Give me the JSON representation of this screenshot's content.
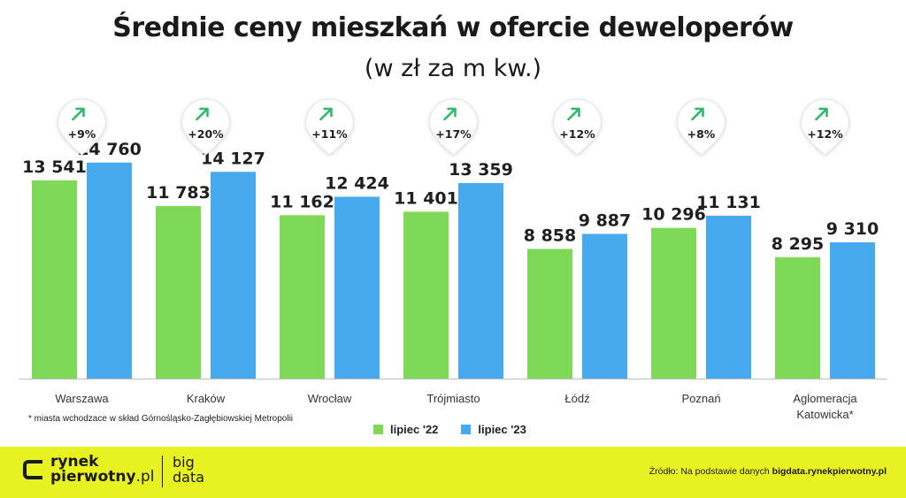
{
  "title": "Średnie ceny mieszkań w ofercie deweloperów",
  "subtitle": "(w zł za m kw.)",
  "chart_data": {
    "type": "bar",
    "categories": [
      "Warszawa",
      "Kraków",
      "Wrocław",
      "Trójmiasto",
      "Łódź",
      "Poznań",
      "Aglomeracja Katowicka*"
    ],
    "category_lines": [
      [
        "Warszawa"
      ],
      [
        "Kraków"
      ],
      [
        "Wrocław"
      ],
      [
        "Trójmiasto"
      ],
      [
        "Łódź"
      ],
      [
        "Poznań"
      ],
      [
        "Aglomeracja",
        "Katowicka*"
      ]
    ],
    "series": [
      {
        "name": "lipiec '22",
        "values": [
          13541,
          11783,
          11162,
          11401,
          8858,
          10296,
          8295
        ],
        "labels": [
          "13 541",
          "11 783",
          "11 162",
          "11 401",
          "8 858",
          "10 296",
          "8 295"
        ],
        "color": "#7ed957"
      },
      {
        "name": "lipiec '23",
        "values": [
          14760,
          14127,
          12424,
          13359,
          9887,
          11131,
          9310
        ],
        "labels": [
          "14 760",
          "14 127",
          "12 424",
          "13 359",
          "9 887",
          "11 131",
          "9 310"
        ],
        "color": "#47a9ee"
      }
    ],
    "changes": [
      "+9%",
      "+20%",
      "+11%",
      "+17%",
      "+12%",
      "+8%",
      "+12%"
    ],
    "change_icon": "arrow-up-right-icon",
    "change_color": "#2fb86e",
    "ylim": [
      0,
      16500
    ],
    "grid": false,
    "legend_position": "bottom-center"
  },
  "footnote": "* miasta wchodzace w skład Górnośląsko-Zagłębiowskiej Metropolii",
  "footer": {
    "logo_line1": "rynek",
    "logo_line2": "pierwotny",
    "logo_line2_suffix": ".pl",
    "bigdata_line1": "big",
    "bigdata_line2": "data",
    "source_prefix": "Źródło: Na podstawie danych",
    "source_link": "bigdata.rynekpierwotny.pl",
    "background": "#e8f222"
  }
}
